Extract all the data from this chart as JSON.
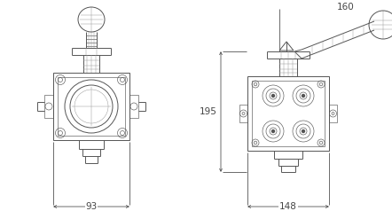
{
  "bg_color": "#ffffff",
  "line_color": "#555555",
  "dim_color": "#444444",
  "light_line": "#999999",
  "lighter_line": "#bbbbbb",
  "dim_93_text": "93",
  "dim_148_text": "148",
  "dim_160_text": "160",
  "dim_195_text": "195",
  "fig_width": 4.42,
  "fig_height": 2.47,
  "dpi": 100
}
